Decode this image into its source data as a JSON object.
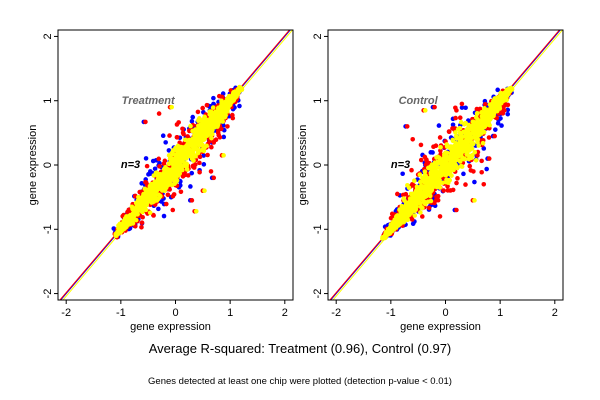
{
  "chart_data": [
    {
      "type": "scatter",
      "panel_label": "Treatment",
      "n_label": "n=3",
      "xlabel": "gene expression",
      "ylabel": "gene expression",
      "xlim": [
        -2.15,
        2.15
      ],
      "ylim": [
        -2.1,
        2.1
      ],
      "xticks": [
        -2,
        -1,
        0,
        1,
        2
      ],
      "yticks": [
        -2,
        -1,
        0,
        1,
        2
      ],
      "grid": false,
      "point_colors": [
        "#0000ff",
        "#ff0000",
        "#ffff00"
      ],
      "diagonal_line_colors": [
        "#0000ff",
        "#ff0000",
        "#ffff00"
      ],
      "cloud_range": [
        -1.1,
        1.2
      ],
      "spread": 0.28,
      "outliers": [
        [
          -0.55,
          0.67
        ],
        [
          -0.3,
          0.8
        ],
        [
          -0.1,
          0.9
        ],
        [
          0.7,
          0.35
        ],
        [
          0.65,
          -0.1
        ],
        [
          0.5,
          -0.4
        ],
        [
          0.3,
          -0.55
        ],
        [
          -0.05,
          -0.7
        ],
        [
          0.35,
          -0.72
        ],
        [
          0.7,
          -0.2
        ],
        [
          0.95,
          0.6
        ],
        [
          0.85,
          0.15
        ]
      ]
    },
    {
      "type": "scatter",
      "panel_label": "Control",
      "n_label": "n=3",
      "xlabel": "gene expression",
      "ylabel": "gene expression",
      "xlim": [
        -2.15,
        2.15
      ],
      "ylim": [
        -2.1,
        2.1
      ],
      "xticks": [
        -2,
        -1,
        0,
        1,
        2
      ],
      "yticks": [
        -2,
        -1,
        0,
        1,
        2
      ],
      "grid": false,
      "point_colors": [
        "#0000ff",
        "#ff0000",
        "#ffff00"
      ],
      "diagonal_line_colors": [
        "#0000ff",
        "#ff0000",
        "#ffff00"
      ],
      "cloud_range": [
        -1.15,
        1.2
      ],
      "spread": 0.32,
      "outliers": [
        [
          -0.7,
          0.6
        ],
        [
          -0.6,
          0.4
        ],
        [
          -0.4,
          0.85
        ],
        [
          -0.2,
          0.9
        ],
        [
          0.2,
          0.85
        ],
        [
          0.6,
          0.6
        ],
        [
          0.8,
          0.1
        ],
        [
          0.7,
          -0.3
        ],
        [
          0.5,
          -0.55
        ],
        [
          0.2,
          -0.7
        ],
        [
          -0.1,
          -0.8
        ],
        [
          -0.5,
          -0.15
        ],
        [
          0.9,
          0.45
        ],
        [
          0.3,
          0.95
        ]
      ]
    }
  ],
  "footer": {
    "rsquared": "Average R-squared: Treatment (0.96), Control (0.97)",
    "note": "Genes detected at least one chip were plotted (detection p-value < 0.01)"
  }
}
